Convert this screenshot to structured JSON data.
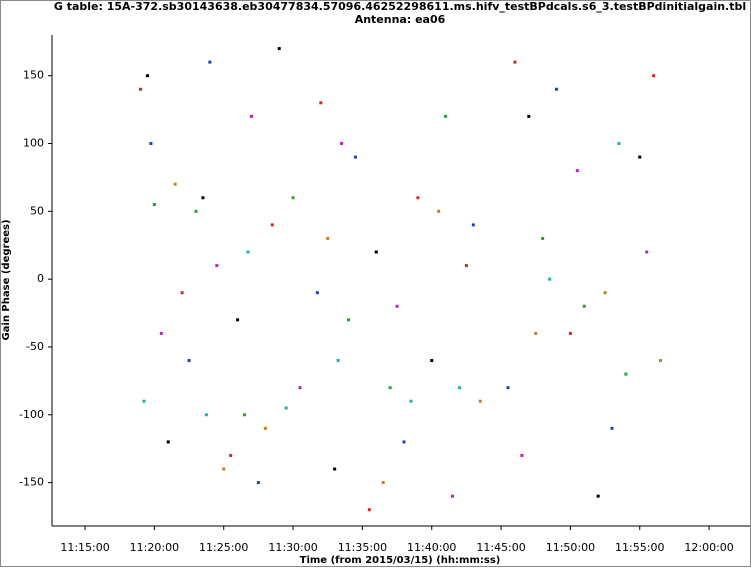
{
  "chart_data": {
    "type": "scatter",
    "title": "G table: 15A-372.sb30143638.eb30477834.57096.46252298611.ms.hifv_testBPdcals.s6_3.testBPdinitialgain.tbl",
    "subtitle": "Antenna: ea06",
    "x_label": "Time (from 2015/03/15) (hh:mm:ss)",
    "y_label": "Gain Phase (degrees)",
    "xlim": [
      "11:12:37",
      "12:02:57"
    ],
    "xticks": [
      "11:15:00",
      "11:20:00",
      "11:25:00",
      "11:30:00",
      "11:35:00",
      "11:40:00",
      "11:45:00",
      "11:50:00",
      "11:55:00",
      "12:00:00"
    ],
    "ylim": [
      -182,
      180
    ],
    "yticks": [
      -150,
      -100,
      -50,
      0,
      50,
      100,
      150
    ],
    "series": [
      {
        "color": "#000000",
        "x": [
          "11:19:30",
          "11:21:00",
          "11:23:30",
          "11:26:00",
          "11:29:00",
          "11:33:00",
          "11:36:00",
          "11:40:00",
          "11:47:00",
          "11:52:00",
          "11:55:00"
        ],
        "values": [
          150,
          -120,
          60,
          -30,
          170,
          -140,
          20,
          -60,
          120,
          -160,
          90
        ]
      },
      {
        "color": "#d62728",
        "x": [
          "11:19:00",
          "11:22:00",
          "11:25:30",
          "11:28:30",
          "11:32:00",
          "11:35:30",
          "11:39:00",
          "11:42:30",
          "11:46:00",
          "11:50:00",
          "11:56:00"
        ],
        "values": [
          140,
          -10,
          -130,
          40,
          130,
          -170,
          60,
          10,
          160,
          -40,
          150
        ]
      },
      {
        "color": "#2ca02c",
        "x": [
          "11:20:00",
          "11:23:00",
          "11:26:30",
          "11:30:00",
          "11:34:00",
          "11:37:00",
          "11:41:00",
          "11:48:00",
          "11:51:00",
          "11:54:00"
        ],
        "values": [
          55,
          50,
          -100,
          60,
          -30,
          -80,
          120,
          30,
          -20,
          -70
        ]
      },
      {
        "color": "#1f3fbf",
        "x": [
          "11:19:45",
          "11:22:30",
          "11:24:00",
          "11:27:30",
          "11:31:45",
          "11:34:30",
          "11:38:00",
          "11:43:00",
          "11:45:30",
          "11:49:00",
          "11:53:00"
        ],
        "values": [
          100,
          -60,
          160,
          -150,
          -10,
          90,
          -120,
          40,
          -80,
          140,
          -110
        ]
      },
      {
        "color": "#c020c0",
        "x": [
          "11:20:30",
          "11:24:30",
          "11:27:00",
          "11:30:30",
          "11:33:30",
          "11:37:30",
          "11:41:30",
          "11:46:30",
          "11:50:30",
          "11:55:30"
        ],
        "values": [
          -40,
          10,
          120,
          -80,
          100,
          -20,
          -160,
          -130,
          80,
          20
        ]
      },
      {
        "color": "#c08020",
        "x": [
          "11:21:30",
          "11:25:00",
          "11:28:00",
          "11:32:30",
          "11:36:30",
          "11:40:30",
          "11:43:30",
          "11:47:30",
          "11:52:30",
          "11:56:30"
        ],
        "values": [
          70,
          -140,
          -110,
          30,
          -150,
          50,
          -90,
          -40,
          -10,
          -60
        ]
      },
      {
        "color": "#20b0b0",
        "x": [
          "11:19:15",
          "11:23:45",
          "11:26:45",
          "11:29:30",
          "11:33:15",
          "11:38:30",
          "11:42:00",
          "11:48:30",
          "11:53:30"
        ],
        "values": [
          -90,
          -100,
          20,
          -95,
          -60,
          -90,
          -80,
          0,
          100
        ]
      }
    ]
  }
}
